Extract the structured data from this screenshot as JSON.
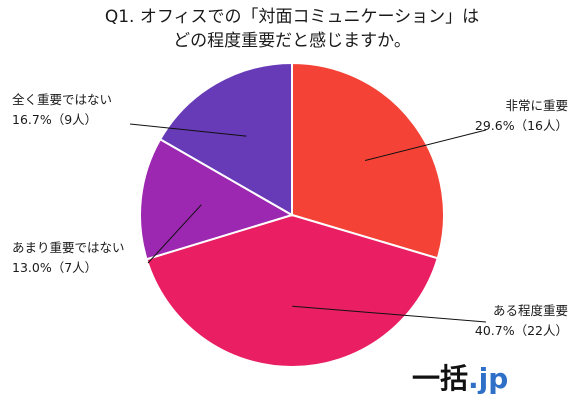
{
  "chart_data": {
    "type": "pie",
    "title_line1": "Q1. オフィスでの「対面コミュニケーション」は",
    "title_line2": "どの程度重要だと感じますか。",
    "slices": [
      {
        "label": "非常に重要",
        "percent": 29.6,
        "count": 16,
        "pct_text": "29.6%（16人）",
        "color": "#f44336"
      },
      {
        "label": "ある程度重要",
        "percent": 40.7,
        "count": 22,
        "pct_text": "40.7%（22人）",
        "color": "#e91e63"
      },
      {
        "label": "あまり重要ではない",
        "percent": 13.0,
        "count": 7,
        "pct_text": "13.0%（7人）",
        "color": "#9c27b0"
      },
      {
        "label": "全く重要ではない",
        "percent": 16.7,
        "count": 9,
        "pct_text": "16.7%（9人）",
        "color": "#673ab7"
      }
    ]
  },
  "logo": {
    "kanji": "一括",
    "suffix": ".jp"
  }
}
